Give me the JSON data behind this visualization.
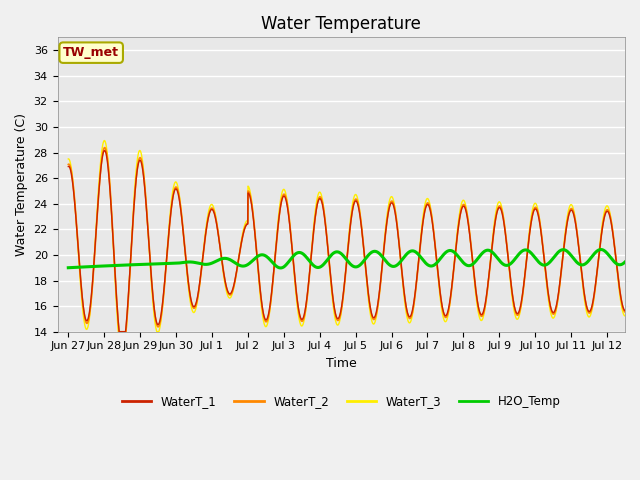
{
  "title": "Water Temperature",
  "xlabel": "Time",
  "ylabel": "Water Temperature (C)",
  "ylim": [
    14,
    37
  ],
  "yticks": [
    14,
    16,
    18,
    20,
    22,
    24,
    26,
    28,
    30,
    32,
    34,
    36
  ],
  "xtick_labels": [
    "Jun 27",
    "Jun 28",
    "Jun 29",
    "Jun 30",
    "Jul 1",
    "Jul 2",
    "Jul 3",
    "Jul 4",
    "Jul 5",
    "Jul 6",
    "Jul 7",
    "Jul 8",
    "Jul 9",
    "Jul 10",
    "Jul 11",
    "Jul 12"
  ],
  "xtick_positions": [
    0,
    1,
    2,
    3,
    4,
    5,
    6,
    7,
    8,
    9,
    10,
    11,
    12,
    13,
    14,
    15
  ],
  "xlim": [
    -0.3,
    15.5
  ],
  "colors": {
    "WaterT_1": "#cc2200",
    "WaterT_2": "#ff8800",
    "WaterT_3": "#ffee00",
    "H2O_Temp": "#00cc00"
  },
  "legend_label": "TW_met",
  "legend_box_color": "#ffffcc",
  "legend_box_edge": "#aaaa00",
  "background_color": "#e8e8e8",
  "plot_bg_color": "#e8e8e8",
  "fig_bg_color": "#f0f0f0",
  "grid_color": "#ffffff",
  "title_fontsize": 12,
  "label_fontsize": 9,
  "tick_fontsize": 8
}
